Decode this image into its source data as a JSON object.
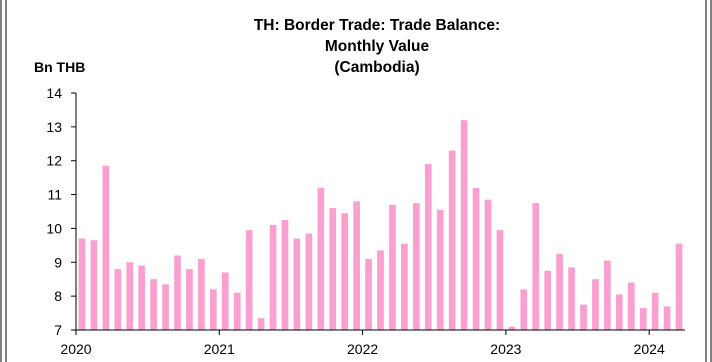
{
  "chart_data": {
    "type": "bar",
    "title_lines": [
      "TH: Border Trade: Trade Balance:",
      "Monthly Value",
      "(Cambodia)"
    ],
    "ylabel": "Bn THB",
    "xlabel": "",
    "ylim": [
      7,
      14
    ],
    "yticks": [
      7,
      8,
      9,
      10,
      11,
      12,
      13,
      14
    ],
    "xtick_labels": [
      "2020",
      "2021",
      "2022",
      "2023",
      "2024"
    ],
    "first_period": "2020-01",
    "frequency": "monthly",
    "bar_color": "#f9a0d0",
    "grid": false,
    "values": [
      9.7,
      9.65,
      11.85,
      8.8,
      9.0,
      8.9,
      8.5,
      8.35,
      9.2,
      8.8,
      9.1,
      8.2,
      8.7,
      8.1,
      9.95,
      7.35,
      10.1,
      10.25,
      9.7,
      9.85,
      11.2,
      10.6,
      10.45,
      10.8,
      9.1,
      9.35,
      10.7,
      9.55,
      10.75,
      11.9,
      10.55,
      12.3,
      13.2,
      11.2,
      10.85,
      9.95,
      7.1,
      8.2,
      10.75,
      8.75,
      9.25,
      8.85,
      7.75,
      8.5,
      9.05,
      8.05,
      8.4,
      7.65,
      8.1,
      7.7,
      9.55
    ]
  }
}
